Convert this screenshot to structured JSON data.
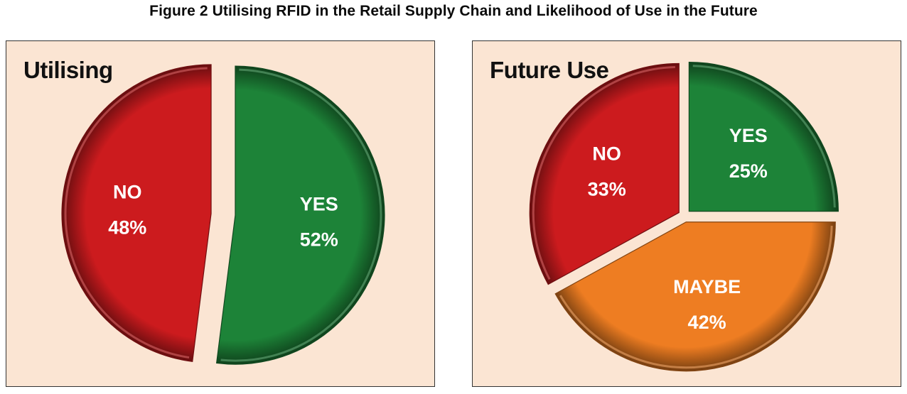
{
  "page": {
    "title": "Figure 2 Utilising RFID in the Retail Supply Chain and Likelihood of Use in the Future"
  },
  "colors": {
    "panel_bg": "#fbe5d3",
    "no": "#cc1b1e",
    "yes": "#1d8338",
    "maybe": "#ee7d22"
  },
  "chart_data": [
    {
      "type": "pie",
      "title": "Utilising",
      "slices": [
        {
          "label": "YES",
          "value": 52,
          "value_label": "52%",
          "color": "#1d8338"
        },
        {
          "label": "NO",
          "value": 48,
          "value_label": "48%",
          "color": "#cc1b1e"
        }
      ]
    },
    {
      "type": "pie",
      "title": "Future Use",
      "slices": [
        {
          "label": "YES",
          "value": 25,
          "value_label": "25%",
          "color": "#1d8338"
        },
        {
          "label": "MAYBE",
          "value": 42,
          "value_label": "42%",
          "color": "#ee7d22"
        },
        {
          "label": "NO",
          "value": 33,
          "value_label": "33%",
          "color": "#cc1b1e"
        }
      ]
    }
  ]
}
